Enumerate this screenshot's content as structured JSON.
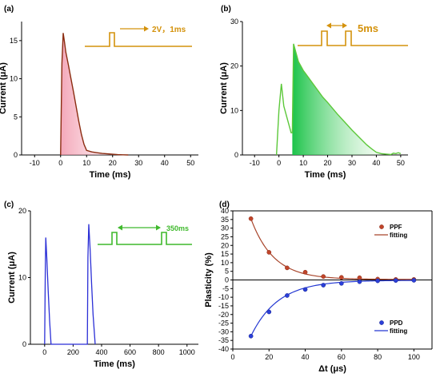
{
  "colors": {
    "panel_a": "#8b2c10",
    "panel_a_fill": "#f4a8b8",
    "panel_b": "#5cc83a",
    "panel_b_fill": "#18c848",
    "panel_c": "#2b2fd6",
    "pulse_orange": "#d4920c",
    "pulse_green": "#3fb92c",
    "ppf": "#c0452a",
    "ppd": "#2b3fd8"
  },
  "chart_data": [
    {
      "panel": "(a)",
      "type": "line",
      "xlabel": "Time (ms)",
      "ylabel": "Current (μA)",
      "xlim": [
        -15,
        53
      ],
      "ylim": [
        0,
        17.5
      ],
      "xticks": [
        -10,
        0,
        10,
        20,
        30,
        40,
        50
      ],
      "yticks": [
        0,
        5,
        10,
        15
      ],
      "pulse_label": "2V，1ms",
      "series": [
        {
          "x": [
            0,
            0.5,
            1,
            1.5,
            2,
            3,
            4,
            5,
            6,
            7,
            8,
            9,
            10,
            12,
            14,
            16,
            18,
            20,
            22,
            24,
            26
          ],
          "y": [
            0,
            12,
            16,
            14.8,
            13.5,
            11.8,
            10,
            8.2,
            6.3,
            4.4,
            2.7,
            1.4,
            0.6,
            0.4,
            0.3,
            0.2,
            0.15,
            0.1,
            0.05,
            0.02,
            0
          ]
        }
      ]
    },
    {
      "panel": "(b)",
      "type": "line",
      "xlabel": "Time (ms)",
      "ylabel": "Current (μA)",
      "xlim": [
        -15,
        53
      ],
      "ylim": [
        0,
        30
      ],
      "xticks": [
        -10,
        0,
        10,
        20,
        30,
        40,
        50
      ],
      "yticks": [
        0,
        10,
        20,
        30
      ],
      "pulse_label": "5ms",
      "series": [
        {
          "x": [
            -1,
            0,
            1,
            2,
            3,
            4,
            5,
            5.5,
            6,
            7,
            8,
            10,
            12,
            14,
            16,
            18,
            20,
            22,
            24,
            26,
            28,
            30,
            32,
            34,
            36,
            38,
            40,
            42,
            44,
            46,
            47,
            48,
            49,
            50
          ],
          "y": [
            0,
            10,
            16,
            11,
            9,
            7,
            5,
            5,
            25,
            23,
            21,
            19,
            17.5,
            16,
            14.5,
            13,
            11.8,
            10.5,
            9.2,
            8,
            6.8,
            5.6,
            4.5,
            3.4,
            2.3,
            1.4,
            0.6,
            0.3,
            0.2,
            0.1,
            0.4,
            0.3,
            0.5,
            0.3
          ]
        }
      ]
    },
    {
      "panel": "(c)",
      "type": "line",
      "xlabel": "Time (ms)",
      "ylabel": "Current (μA)",
      "xlim": [
        -100,
        1080
      ],
      "ylim": [
        0,
        20
      ],
      "xticks": [
        0,
        200,
        400,
        600,
        800,
        1000
      ],
      "yticks": [
        0,
        10,
        20
      ],
      "pulse_label": "350ms",
      "series": [
        {
          "x": [
            0,
            5,
            8,
            15,
            25,
            35,
            45,
            300,
            304,
            310,
            320,
            330,
            340,
            350,
            355
          ],
          "y": [
            0,
            12,
            16,
            13,
            8,
            3.5,
            0,
            0,
            13,
            18,
            14,
            9,
            4.5,
            1.5,
            0
          ]
        }
      ]
    },
    {
      "panel": "(d)",
      "type": "scatter",
      "xlabel": "Δt (μs)",
      "ylabel": "Plasticity (%)",
      "xlim": [
        0,
        110
      ],
      "ylim": [
        -40,
        40
      ],
      "xticks": [
        0,
        20,
        40,
        60,
        80,
        100
      ],
      "yticks": [
        -40,
        -35,
        -30,
        -25,
        -20,
        -15,
        -10,
        -5,
        0,
        5,
        10,
        15,
        20,
        25,
        30,
        35,
        40
      ],
      "legend_ppf": [
        "PPF",
        "fitting"
      ],
      "legend_ppd": [
        "PPD",
        "fitting"
      ],
      "series": [
        {
          "name": "PPF",
          "x": [
            10,
            20,
            30,
            40,
            50,
            60,
            70,
            80,
            90,
            100
          ],
          "y": [
            35.5,
            16,
            7,
            4.5,
            2,
            1.5,
            1.3,
            0.5,
            0.3,
            0.3
          ]
        },
        {
          "name": "PPD",
          "x": [
            10,
            20,
            30,
            40,
            50,
            60,
            70,
            80,
            90,
            100
          ],
          "y": [
            -32.5,
            -18.5,
            -9,
            -5.5,
            -3,
            -2,
            -1,
            -0.5,
            -0.3,
            -0.2
          ]
        }
      ]
    }
  ]
}
